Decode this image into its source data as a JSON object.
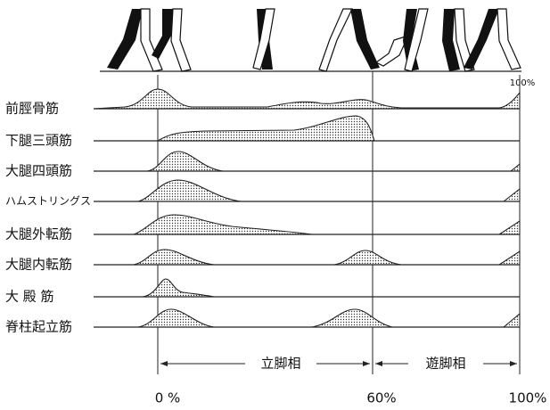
{
  "top_label": "100%",
  "muscles": [
    "前脛骨筋",
    "下腿三頭筋",
    "大腿四頭筋",
    "ハムストリングス",
    "大腿外転筋",
    "大腿内転筋",
    "大 殿 筋",
    "脊柱起立筋"
  ],
  "phases": {
    "stance": "立脚相",
    "swing": "遊脚相"
  },
  "axis_labels": [
    "0 %",
    "60%",
    "100%"
  ]
}
